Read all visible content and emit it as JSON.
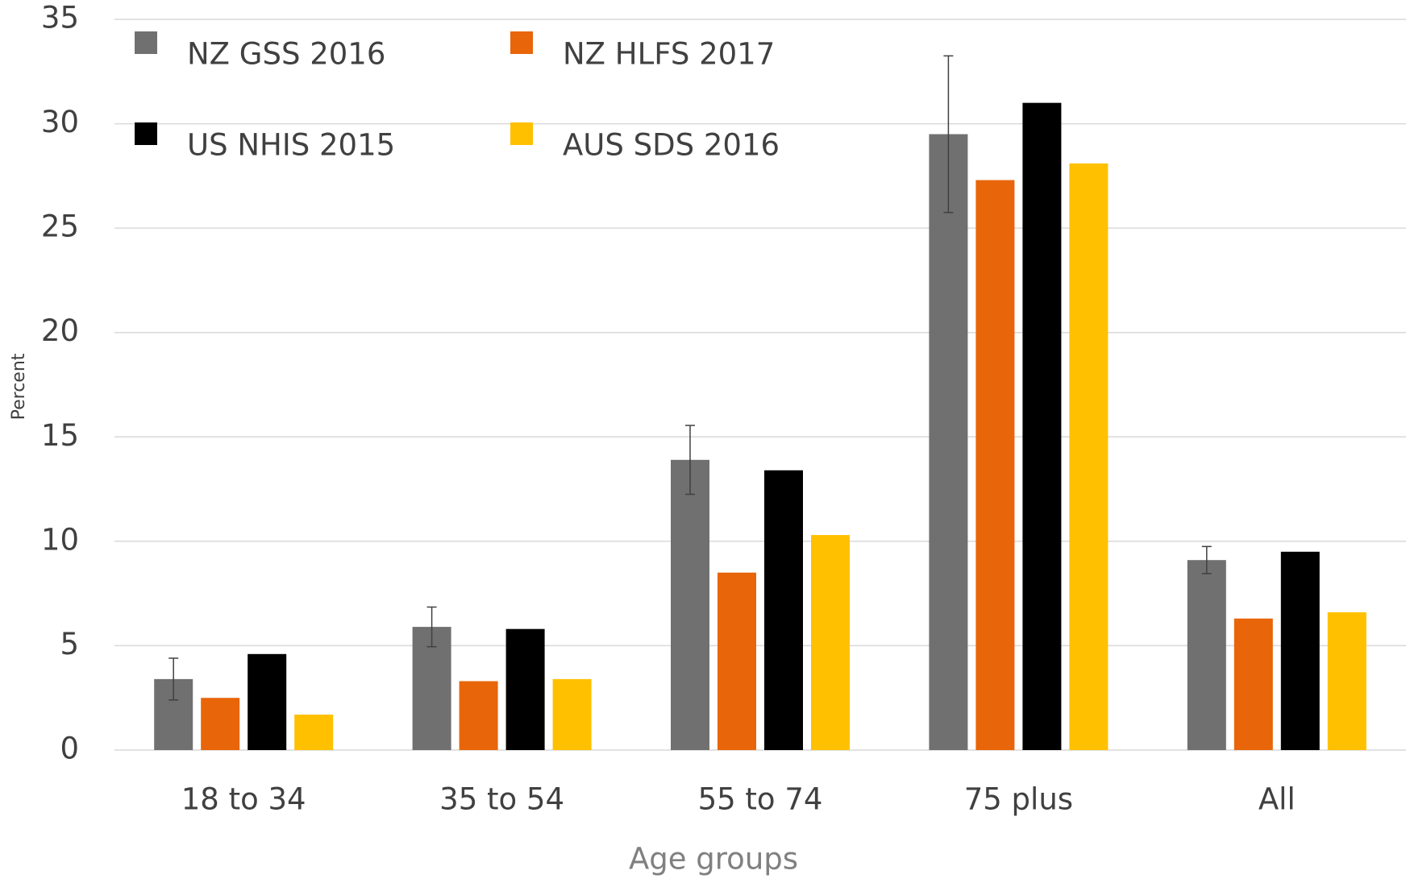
{
  "chart_data": {
    "type": "bar",
    "x_label": "Age groups",
    "y_label": "Percent",
    "categories": [
      "18 to 34",
      "35 to 54",
      "55 to 74",
      "75 plus",
      "All"
    ],
    "series": [
      {
        "name": "NZ GSS 2016",
        "color": "#707070",
        "values": [
          3.4,
          5.9,
          13.9,
          29.5,
          9.1
        ],
        "errors": [
          1.0,
          0.95,
          1.65,
          3.75,
          0.65
        ]
      },
      {
        "name": "NZ HLFS 2017",
        "color": "#e8650a",
        "values": [
          2.5,
          3.3,
          8.5,
          27.3,
          6.3
        ]
      },
      {
        "name": "US NHIS 2015",
        "color": "#000000",
        "values": [
          4.6,
          5.8,
          13.4,
          31.0,
          9.5
        ]
      },
      {
        "name": "AUS SDS 2016",
        "color": "#ffc000",
        "values": [
          1.7,
          3.4,
          10.3,
          28.1,
          6.6
        ]
      }
    ],
    "ylim": [
      0,
      35
    ],
    "yticks": [
      0,
      5,
      10,
      15,
      20,
      25,
      30,
      35
    ],
    "grid": true
  }
}
